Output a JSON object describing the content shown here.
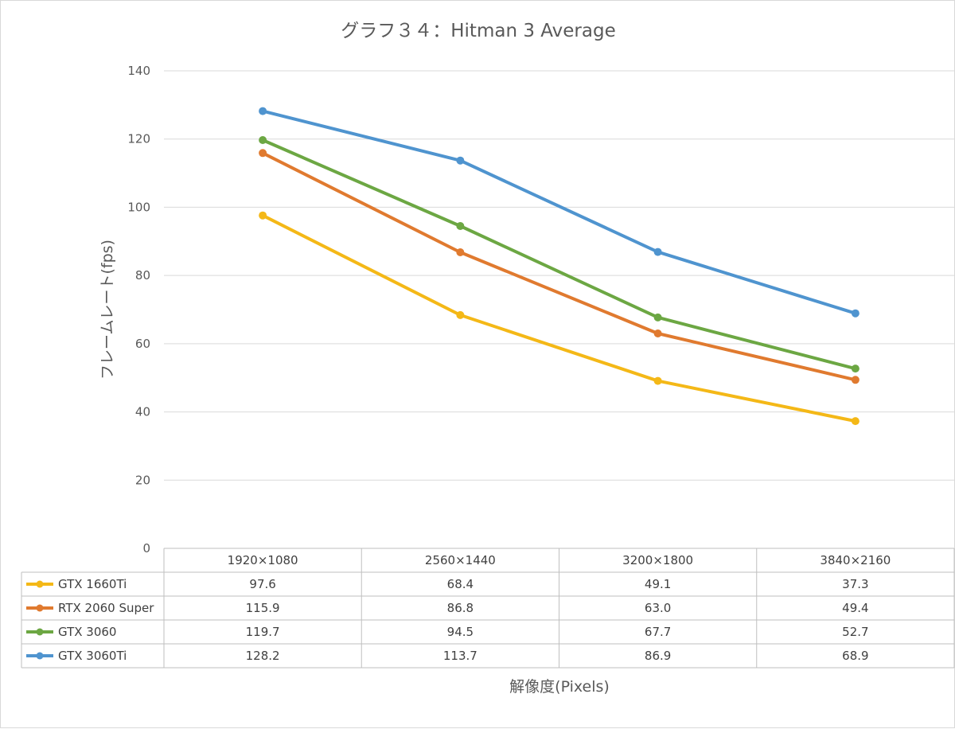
{
  "chart_data": {
    "type": "line",
    "title": "グラフ３４：Hitman 3 Average",
    "xlabel": "解像度(Pixels)",
    "ylabel": "フレームレート(fps)",
    "categories": [
      "1920×1080",
      "2560×1440",
      "3200×1800",
      "3840×2160"
    ],
    "ylim": [
      0,
      140
    ],
    "yticks": [
      0,
      20,
      40,
      60,
      80,
      100,
      120,
      140
    ],
    "grid": true,
    "legend": "data-table",
    "series": [
      {
        "name": "GTX 1660Ti",
        "color": "#f4b817",
        "values": [
          97.6,
          68.4,
          49.1,
          37.3
        ],
        "labels": [
          "97.6",
          "68.4",
          "49.1",
          "37.3"
        ]
      },
      {
        "name": "RTX 2060 Super",
        "color": "#e07a2f",
        "values": [
          115.9,
          86.8,
          63.0,
          49.4
        ],
        "labels": [
          "115.9",
          "86.8",
          "63.0",
          "49.4"
        ]
      },
      {
        "name": "GTX 3060",
        "color": "#6ca743",
        "values": [
          119.7,
          94.5,
          67.7,
          52.7
        ],
        "labels": [
          "119.7",
          "94.5",
          "67.7",
          "52.7"
        ]
      },
      {
        "name": "GTX 3060Ti",
        "color": "#4f94cf",
        "values": [
          128.2,
          113.7,
          86.9,
          68.9
        ],
        "labels": [
          "128.2",
          "113.7",
          "86.9",
          "68.9"
        ]
      }
    ]
  }
}
